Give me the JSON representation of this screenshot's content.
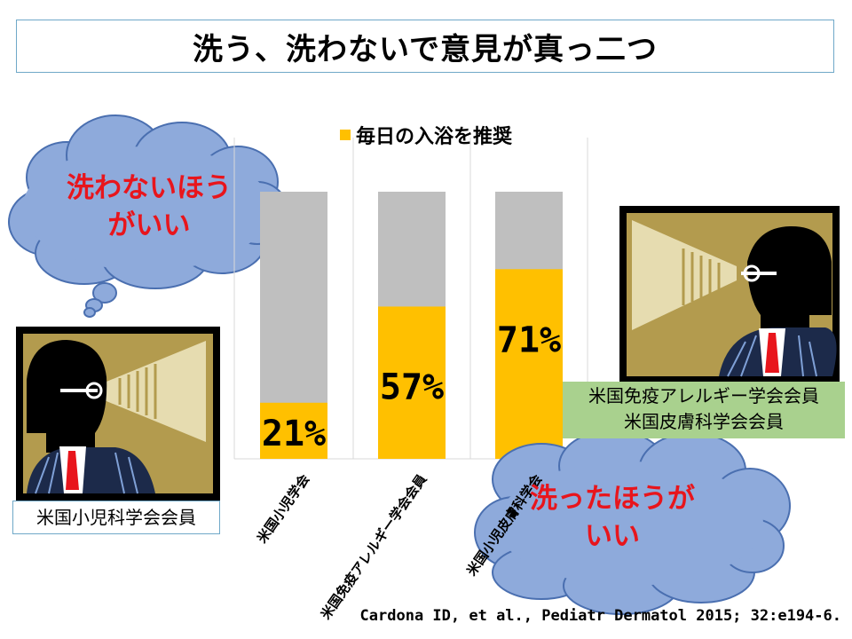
{
  "title": "洗う、洗わないで意見が真っ二つ",
  "legend_label": "毎日の入浴を推奨",
  "left_cloud": {
    "line1": "洗わないほう",
    "line2": "がいい"
  },
  "right_cloud": {
    "line1": "洗ったほうが",
    "line2": "いい"
  },
  "left_person_label": "米国小児科学会会員",
  "right_person_label": {
    "line1": "米国免疫アレルギー学会会員",
    "line2": "米国皮膚科学会会員"
  },
  "citation": "Cardona ID, et al., Pediatr Dermatol 2015; 32:e194-6.",
  "colors": {
    "recommend": "#ffc000",
    "remainder": "#bfbfbf",
    "cloud": "#8eaadb",
    "green_box": "#a9d18e",
    "red_text": "#e8151c"
  },
  "chart_data": {
    "type": "bar",
    "stacked": true,
    "categories": [
      "米国小児学会",
      "米国免疫アレルギー学会会員",
      "米国小児皮膚科学会"
    ],
    "series": [
      {
        "name": "毎日の入浴を推奨",
        "values": [
          21,
          57,
          71
        ]
      }
    ],
    "data_labels": [
      "21%",
      "57%",
      "71%"
    ],
    "ylim": [
      0,
      100
    ],
    "legend_position": "top",
    "grid": "vertical"
  }
}
